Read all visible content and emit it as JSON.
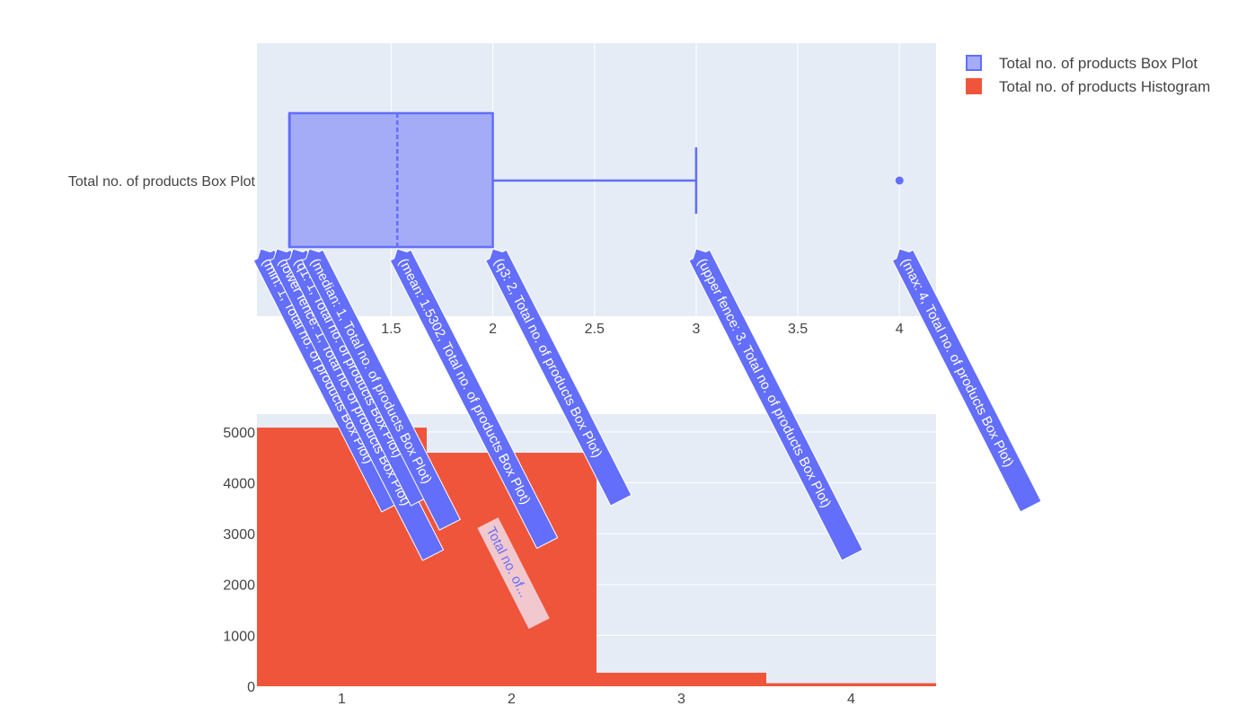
{
  "chart_data": [
    {
      "type": "box",
      "orientation": "horizontal",
      "series_name": "Total no. of products Box Plot",
      "category_label": "Total no. of products Box Plot",
      "stats": {
        "min": 1,
        "lower_fence": 1,
        "q1": 1,
        "median": 1,
        "mean": 1.5302,
        "q3": 2,
        "upper_fence": 3,
        "max": 4
      },
      "outliers": [
        4
      ],
      "xlim": [
        0.84,
        4.18
      ],
      "x_ticks": [
        1.5,
        2,
        2.5,
        3,
        3.5,
        4
      ],
      "x_tick_labels": [
        "1.5",
        "2",
        "2.5",
        "3",
        "3.5",
        "4"
      ],
      "grid": true,
      "hover_labels": [
        {
          "value": 1,
          "text": "(min: 1, Total no. of products Box Plot)"
        },
        {
          "value": 1,
          "text": "(lower fence: 1, Total no. of products Box Plot)"
        },
        {
          "value": 1,
          "text": "(q1: 1, Total no. of products Box Plot)"
        },
        {
          "value": 1,
          "text": "(median: 1, Total no. of products Box Plot)"
        },
        {
          "value": 1.5302,
          "text": "(mean: 1.5302, Total no. of products Box Plot)"
        },
        {
          "value": 2,
          "text": "(q3: 2, Total no. of products Box Plot)"
        },
        {
          "value": 3,
          "text": "(upper fence: 3, Total no. of products Box Plot)"
        },
        {
          "value": 4,
          "text": "(max: 4, Total no. of products Box Plot)"
        }
      ],
      "truncated_hover_label": "Total no. of..."
    },
    {
      "type": "bar",
      "series_name": "Total no. of products Histogram",
      "categories": [
        1,
        2,
        3,
        4
      ],
      "values": [
        5084,
        4590,
        266,
        60
      ],
      "xlim": [
        0.5,
        4.5
      ],
      "ylim": [
        0,
        5350
      ],
      "x_ticks": [
        1,
        2,
        3,
        4
      ],
      "x_tick_labels": [
        "1",
        "2",
        "3",
        "4"
      ],
      "y_ticks": [
        0,
        1000,
        2000,
        3000,
        4000,
        5000
      ],
      "y_tick_labels": [
        "0",
        "1000",
        "2000",
        "3000",
        "4000",
        "5000"
      ],
      "grid": true
    }
  ],
  "legend": {
    "placement": "top-right",
    "items": [
      {
        "label": "Total no. of products Box Plot",
        "color": "#636efa"
      },
      {
        "label": "Total no. of products Histogram",
        "color": "#ef553b"
      }
    ]
  },
  "colors": {
    "plot_bg": "#e5ecf6",
    "grid": "#ffffff",
    "box_line": "#636efa",
    "box_fill": "#a5acf7",
    "bar": "#ef553b",
    "hover_bg": "#636efa",
    "hover_truncated_bg": "#f2c8cf",
    "hover_truncated_text": "#636efa"
  }
}
